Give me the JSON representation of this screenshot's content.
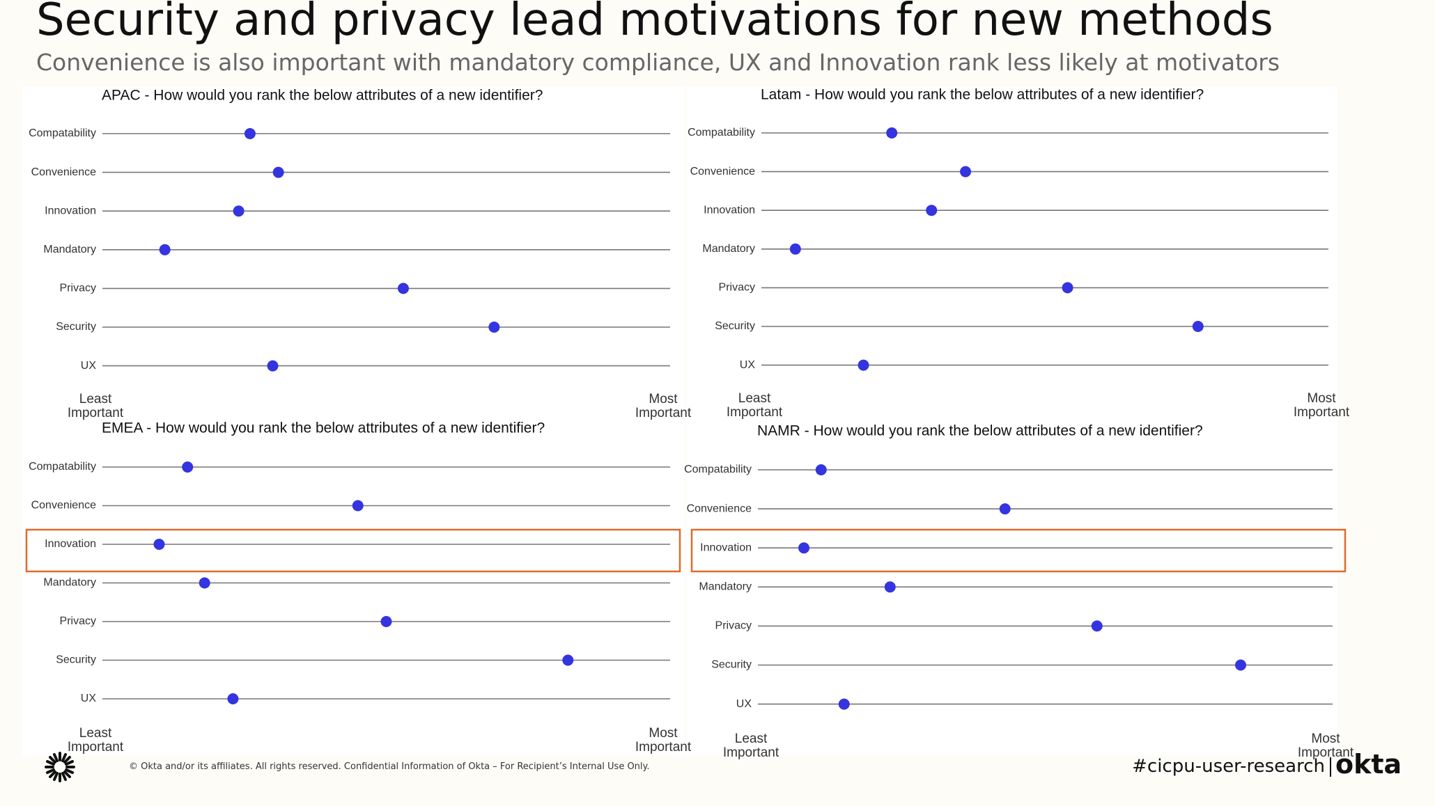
{
  "header": {
    "title": "Security and privacy lead motivations for new methods",
    "subtitle": "Convenience is also important with mandatory compliance, UX and Innovation rank less likely at motivators"
  },
  "chart_data": [
    {
      "type": "dot",
      "title": "APAC - How would you rank the below attributes of a new identifier?",
      "categories": [
        "Compatability",
        "Convenience",
        "Innovation",
        "Mandatory",
        "Privacy",
        "Security",
        "UX"
      ],
      "values": [
        26,
        31,
        24,
        11,
        53,
        69,
        30
      ],
      "color": "#3434e0",
      "xlim": [
        0,
        100
      ],
      "xticks": [
        {
          "value": 0,
          "label": "Least Important"
        },
        {
          "value": 100,
          "label": "Most Important"
        }
      ]
    },
    {
      "type": "dot",
      "title": "Latam - How would you rank the below attributes of a new identifier?",
      "categories": [
        "Compatability",
        "Convenience",
        "Innovation",
        "Mandatory",
        "Privacy",
        "Security",
        "UX"
      ],
      "values": [
        23,
        36,
        30,
        6,
        54,
        77,
        18
      ],
      "color": "#3434e0",
      "xlim": [
        0,
        100
      ],
      "xticks": [
        {
          "value": 0,
          "label": "Least Important"
        },
        {
          "value": 100,
          "label": "Most Important"
        }
      ]
    },
    {
      "type": "dot",
      "title": "EMEA - How would you rank the below attributes of a new identifier?",
      "categories": [
        "Compatability",
        "Convenience",
        "Innovation",
        "Mandatory",
        "Privacy",
        "Security",
        "UX"
      ],
      "values": [
        15,
        45,
        10,
        18,
        50,
        82,
        23
      ],
      "color": "#3434e0",
      "xlim": [
        0,
        100
      ],
      "xticks": [
        {
          "value": 0,
          "label": "Least Important"
        },
        {
          "value": 100,
          "label": "Most Important"
        }
      ]
    },
    {
      "type": "dot",
      "title": "NAMR - How would you rank the below attributes of a new identifier?",
      "categories": [
        "Compatability",
        "Convenience",
        "Innovation",
        "Mandatory",
        "Privacy",
        "Security",
        "UX"
      ],
      "values": [
        11,
        43,
        8,
        23,
        59,
        84,
        15
      ],
      "color": "#3434e0",
      "xlim": [
        0,
        100
      ],
      "xticks": [
        {
          "value": 0,
          "label": "Least Important"
        },
        {
          "value": 100,
          "label": "Most Important"
        }
      ]
    }
  ],
  "footer": {
    "copyright": "© Okta and/or its affiliates. All rights reserved. Confidential Information of Okta – For Recipient’s Internal Use Only.",
    "hashtag": "#cicpu-user-research",
    "brand": "okta"
  }
}
